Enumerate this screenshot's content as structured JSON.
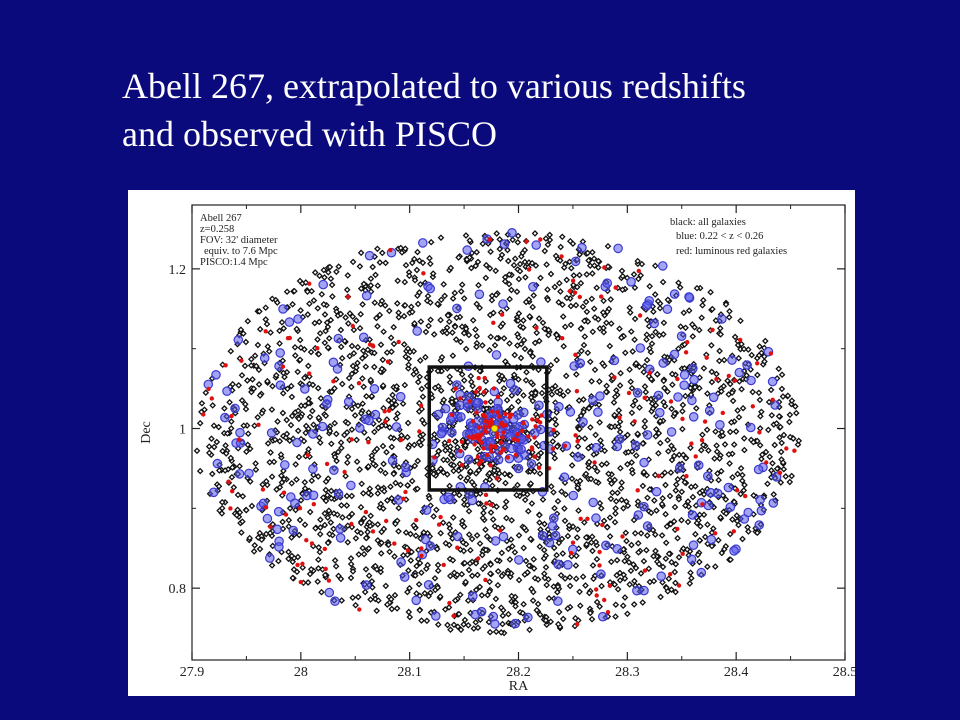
{
  "slide": {
    "title_line1": "Abell 267, extrapolated to various redshifts",
    "title_line2": "and observed with PISCO",
    "background_color": "#0a0a7c"
  },
  "chart_data": {
    "type": "scatter",
    "xlabel": "RA",
    "ylabel": "Dec",
    "xlim": [
      27.9,
      28.5
    ],
    "ylim": [
      0.71,
      1.28
    ],
    "xticks": [
      27.9,
      28,
      28.1,
      28.2,
      28.3,
      28.4,
      28.5
    ],
    "xtick_labels": [
      "27.9",
      "28",
      "28.1",
      "28.2",
      "28.3",
      "28.4",
      "28.5"
    ],
    "yticks": [
      0.8,
      1,
      1.2
    ],
    "ytick_labels": [
      "0.8",
      "1",
      "1.2"
    ],
    "grid": false,
    "field_of_view": {
      "center": [
        28.18,
        0.995
      ],
      "ra_semi_axis": 0.278,
      "dec_semi_axis": 0.252
    },
    "pisco_box": {
      "ra": [
        28.118,
        28.226
      ],
      "dec": [
        0.923,
        1.077
      ]
    },
    "cluster_center": [
      28.178,
      1.0
    ],
    "info_lines": [
      "Abell 267",
      "z=0.258",
      "FOV: 32' diameter",
      "equiv. to 7.6 Mpc",
      "PISCO:1.4 Mpc"
    ],
    "legend_lines": [
      "black: all galaxies",
      "blue: 0.22 < z < 0.26",
      "red: luminous red galaxies"
    ],
    "series": [
      {
        "name": "black: all galaxies",
        "color": "#111111",
        "marker": "open-diamond",
        "approx_count": 2600
      },
      {
        "name": "blue: 0.22 < z < 0.26",
        "color": "#3a3ad0",
        "marker": "open-circle",
        "approx_count": 320
      },
      {
        "name": "red: luminous red galaxies",
        "color": "#e01010",
        "marker": "filled-circle",
        "approx_count": 260
      }
    ]
  }
}
